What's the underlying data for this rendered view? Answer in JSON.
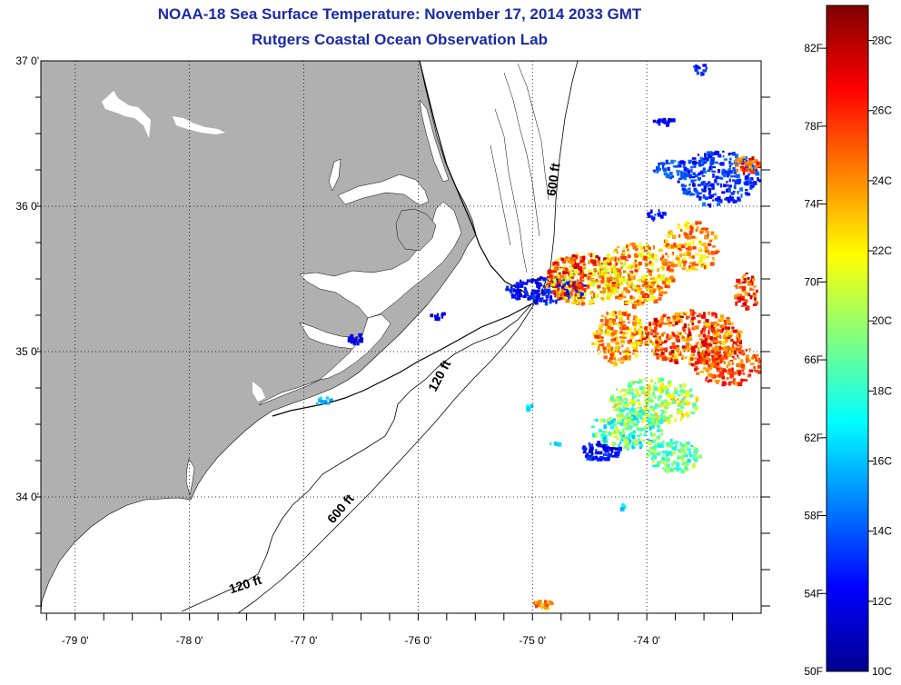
{
  "header": {
    "title": "NOAA-18 Sea Surface Temperature:  November 17, 2014 2033 GMT",
    "subtitle": "Rutgers Coastal Ocean Observation Lab"
  },
  "map": {
    "lon_range": [
      -79.3,
      -73.0
    ],
    "lat_range": [
      33.2,
      37.0
    ],
    "lat_labels": [
      {
        "lat": 37,
        "text": "37 0'"
      },
      {
        "lat": 36,
        "text": "36 0'"
      },
      {
        "lat": 35,
        "text": "35 0'"
      },
      {
        "lat": 34,
        "text": "34 0'"
      }
    ],
    "lon_labels": [
      {
        "lon": -79,
        "text": "-79 0'"
      },
      {
        "lon": -78,
        "text": "-78 0'"
      },
      {
        "lon": -77,
        "text": "-77 0'"
      },
      {
        "lon": -76,
        "text": "-76 0'"
      },
      {
        "lon": -75,
        "text": "-75 0'"
      },
      {
        "lon": -74,
        "text": "-74 0'"
      }
    ],
    "contour_labels": [
      {
        "text": "600 ft",
        "lon": -74.78,
        "lat": 36.18
      },
      {
        "text": "120 ft",
        "lon": -75.78,
        "lat": 34.82
      },
      {
        "text": "600 ft",
        "lon": -76.65,
        "lat": 33.9
      },
      {
        "text": "120 ft",
        "lon": -77.5,
        "lat": 33.37
      }
    ],
    "land_color": "#b0b0b0"
  },
  "colorbar": {
    "fahrenheit_labels": [
      "82F",
      "78F",
      "74F",
      "70F",
      "66F",
      "62F",
      "58F",
      "54F",
      "50F"
    ],
    "celsius_labels": [
      "28C",
      "26C",
      "24C",
      "22C",
      "20C",
      "18C",
      "16C",
      "14C",
      "12C",
      "10C"
    ],
    "min_c": 10,
    "max_c": 29
  }
}
